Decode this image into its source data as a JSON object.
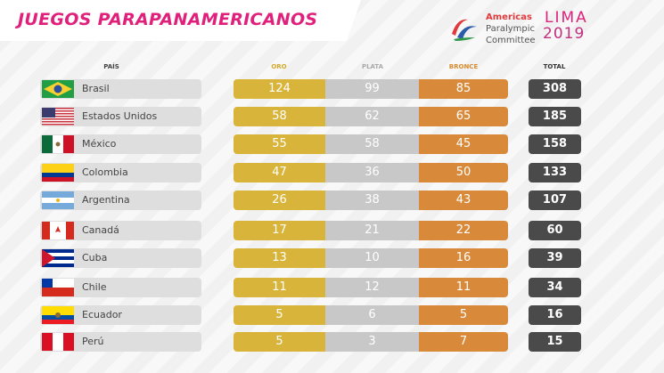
{
  "header": {
    "title": "JUEGOS PARAPANAMERICANOS",
    "logo_lines": [
      "Americas",
      "Paralympic",
      "Committee"
    ],
    "logo_city": "LIMA",
    "logo_year": "2019"
  },
  "table": {
    "columns": [
      "PAÍS",
      "ORO",
      "PLATA",
      "BRONCE",
      "TOTAL"
    ],
    "rows": [
      [
        "Brasil",
        124,
        99,
        85,
        308
      ],
      [
        "Estados Unidos",
        58,
        62,
        65,
        185
      ],
      [
        "México",
        55,
        58,
        45,
        158
      ],
      [
        "Colombia",
        47,
        36,
        50,
        133
      ],
      [
        "Argentina",
        26,
        38,
        43,
        107
      ],
      [
        "Canadá",
        17,
        21,
        22,
        60
      ],
      [
        "Cuba",
        13,
        10,
        16,
        39
      ],
      [
        "Chile",
        11,
        12,
        11,
        34
      ],
      [
        "Ecuador",
        5,
        6,
        5,
        16
      ],
      [
        "Perú",
        5,
        3,
        7,
        15
      ]
    ]
  }
}
